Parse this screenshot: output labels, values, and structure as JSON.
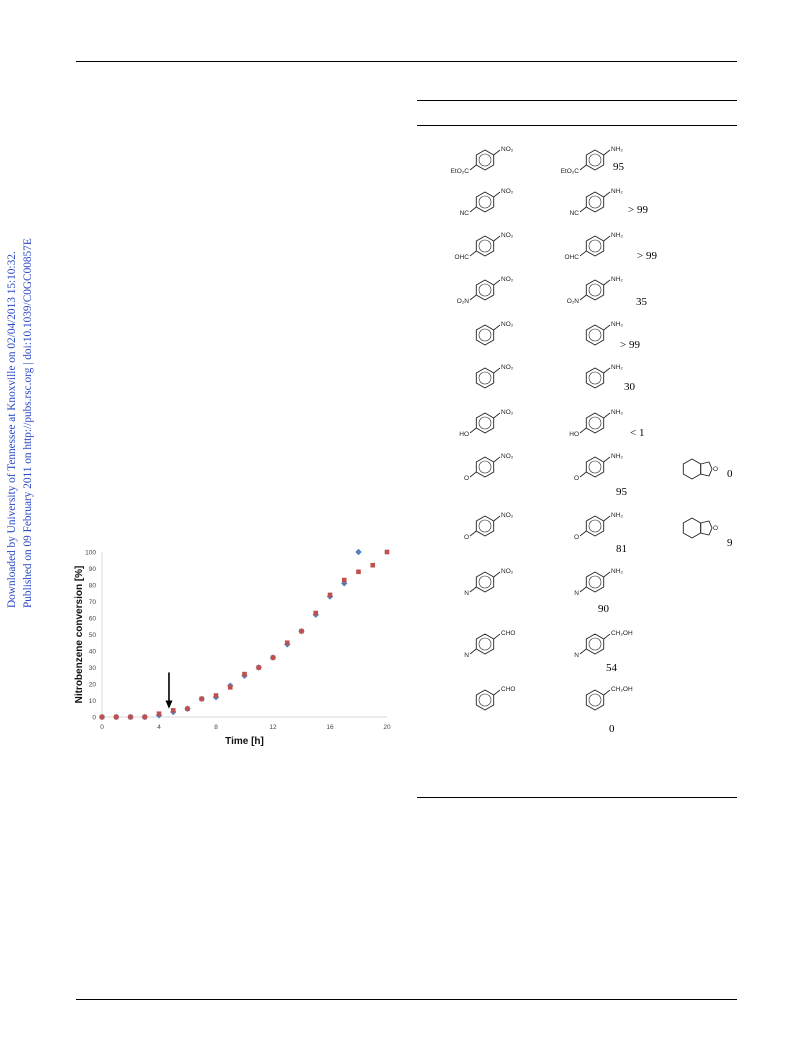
{
  "sidebar": {
    "line1": "Downloaded by University of Tennessee at Knoxville on 02/04/2013 15:10:32.",
    "line2": "Published on 09 February 2011 on http://pubs.rsc.org | doi:10.1039/C0GC00857E"
  },
  "chart_data": {
    "type": "scatter",
    "xlabel": "Time [h]",
    "ylabel": "Nitrobenzene conversion [%]",
    "xlim": [
      0,
      20
    ],
    "ylim": [
      0,
      100
    ],
    "xticks": [
      0,
      4,
      8,
      12,
      16,
      20
    ],
    "yticks": [
      0,
      10,
      20,
      30,
      40,
      50,
      60,
      70,
      80,
      90,
      100
    ],
    "grid": false,
    "annotation": "arrow pointing down at x = 4.7",
    "series": [
      {
        "marker": "diamond",
        "color": "#4f81bd",
        "x": [
          0,
          1,
          2,
          3,
          4,
          5,
          6,
          7,
          8,
          9,
          10,
          11,
          12,
          13,
          14,
          15,
          16,
          17,
          18
        ],
        "y": [
          0,
          0,
          0,
          0,
          1,
          3,
          5,
          11,
          12,
          19,
          25,
          30,
          36,
          44,
          52,
          62,
          73,
          81,
          100
        ]
      },
      {
        "marker": "square",
        "color": "#c0504d",
        "x": [
          0,
          1,
          2,
          3,
          4,
          5,
          6,
          7,
          8,
          9,
          10,
          11,
          12,
          13,
          14,
          15,
          16,
          17,
          18,
          19,
          20
        ],
        "y": [
          0,
          0,
          0,
          0,
          2,
          4,
          5,
          11,
          13,
          18,
          26,
          30,
          36,
          45,
          52,
          63,
          74,
          83,
          88,
          92,
          100
        ]
      }
    ]
  },
  "table": {
    "rows": [
      {
        "sub_lbl": [
          "NO₂",
          "EtO₂C"
        ],
        "prod_lbl": [
          "NH₂",
          "EtO₂C"
        ],
        "yield": "95"
      },
      {
        "sub_lbl": [
          "NO₂",
          "NC"
        ],
        "prod_lbl": [
          "NH₂",
          "NC"
        ],
        "yield": "> 99"
      },
      {
        "sub_lbl": [
          "NO₂",
          "OHC"
        ],
        "prod_lbl": [
          "NH₂",
          "OHC"
        ],
        "yield": "> 99"
      },
      {
        "sub_lbl": [
          "NO₂",
          "O₂N"
        ],
        "prod_lbl": [
          "NH₂",
          "O₂N"
        ],
        "yield": "35"
      },
      {
        "sub_lbl": [
          "NO₂",
          ""
        ],
        "prod_lbl": [
          "NH₂",
          ""
        ],
        "yield": "> 99"
      },
      {
        "sub_lbl": [
          "NO₂",
          ""
        ],
        "prod_lbl": [
          "NH₂",
          ""
        ],
        "yield": "30"
      },
      {
        "sub_lbl": [
          "NO₂",
          "HO"
        ],
        "prod_lbl": [
          "NH₂",
          "HO"
        ],
        "yield": "< 1"
      },
      {
        "sub_lbl": [
          "NO₂",
          "O"
        ],
        "prod_lbl": [
          "NH₂",
          "O"
        ],
        "yield": "95",
        "extra_yield": "0"
      },
      {
        "sub_lbl": [
          "NO₂",
          "O"
        ],
        "prod_lbl": [
          "NH₂",
          "O"
        ],
        "yield": "81",
        "extra_yield": "9"
      },
      {
        "sub_lbl": [
          "NO₂",
          "N"
        ],
        "prod_lbl": [
          "NH₂",
          "N"
        ],
        "yield": "90"
      },
      {
        "sub_lbl": [
          "CHO",
          "N"
        ],
        "prod_lbl": [
          "CH₂OH",
          "N"
        ],
        "yield": "54"
      },
      {
        "sub_lbl": [
          "CHO",
          ""
        ],
        "prod_lbl": [
          "CH₂OH",
          ""
        ],
        "yield": "0"
      }
    ]
  }
}
